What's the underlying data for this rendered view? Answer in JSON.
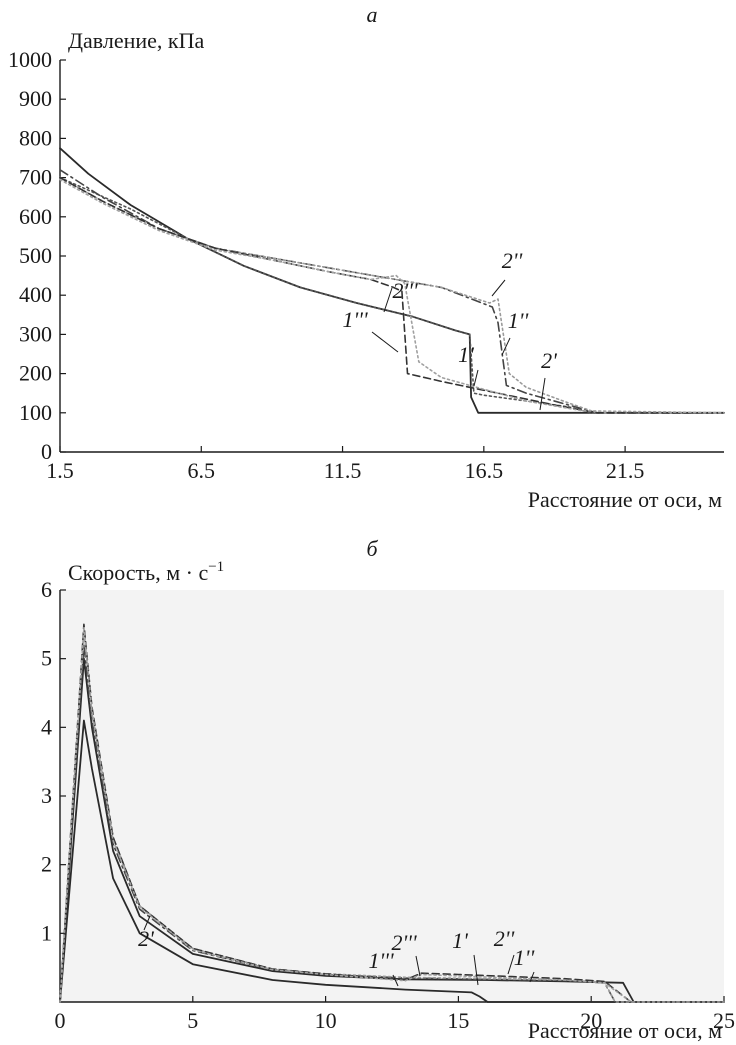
{
  "chart_data": [
    {
      "type": "line",
      "panel_label": "а",
      "ylabel": "Давление, кПа",
      "xlabel": "Расстояние от оси, м",
      "xlim": [
        1.5,
        25.0
      ],
      "ylim": [
        0,
        1000
      ],
      "xticks": [
        "1.5",
        "6.5",
        "11.5",
        "16.5",
        "21.5"
      ],
      "yticks": [
        "0",
        "100",
        "200",
        "300",
        "400",
        "500",
        "600",
        "700",
        "800",
        "900",
        "1000"
      ],
      "series": [
        {
          "name": "1'",
          "style": "solid",
          "color": "#2a2a2a",
          "x": [
            1.5,
            2.5,
            4,
            6,
            8,
            10,
            12,
            14,
            15.5,
            16.0,
            16.05,
            16.3,
            17,
            20,
            25
          ],
          "y": [
            775,
            710,
            630,
            545,
            475,
            420,
            380,
            345,
            310,
            300,
            140,
            100,
            100,
            100,
            100
          ]
        },
        {
          "name": "2'",
          "style": "dotted",
          "color": "#555555",
          "x": [
            1.5,
            4,
            6,
            8,
            10,
            12,
            14,
            15.5,
            16.0,
            16.15,
            16.5,
            18,
            19.5,
            20.3,
            25
          ],
          "y": [
            700,
            620,
            545,
            475,
            420,
            380,
            345,
            310,
            300,
            150,
            145,
            130,
            115,
            100,
            100
          ]
        },
        {
          "name": "1''",
          "style": "dashdot",
          "color": "#444444",
          "x": [
            1.5,
            3,
            5,
            7,
            9,
            11,
            13,
            15,
            16.8,
            17.0,
            17.3,
            18,
            19.5,
            20.5,
            25
          ],
          "y": [
            720,
            650,
            570,
            520,
            495,
            470,
            445,
            420,
            370,
            330,
            170,
            150,
            120,
            100,
            100
          ]
        },
        {
          "name": "2''",
          "style": "dotted",
          "color": "#9a9a9a",
          "x": [
            1.5,
            3,
            5,
            7,
            9,
            11,
            13,
            15,
            16.7,
            17.0,
            17.4,
            18,
            19.5,
            20.5,
            25
          ],
          "y": [
            700,
            640,
            570,
            520,
            495,
            470,
            445,
            420,
            380,
            390,
            200,
            165,
            125,
            100,
            100
          ]
        },
        {
          "name": "1'''",
          "style": "dashed",
          "color": "#333333",
          "x": [
            1.5,
            3,
            5,
            7,
            9,
            11,
            12.5,
            13.3,
            13.6,
            13.8,
            15,
            17,
            19,
            20.5,
            25
          ],
          "y": [
            700,
            640,
            570,
            520,
            490,
            460,
            440,
            420,
            410,
            200,
            180,
            150,
            120,
            100,
            100
          ]
        },
        {
          "name": "2'''",
          "style": "dotted",
          "color": "#a0a0a0",
          "x": [
            1.5,
            3,
            5,
            7,
            9,
            11,
            12.5,
            13.4,
            13.7,
            14.2,
            15,
            16.5,
            18,
            20,
            25
          ],
          "y": [
            695,
            635,
            565,
            515,
            490,
            460,
            440,
            450,
            430,
            230,
            190,
            160,
            130,
            105,
            100
          ]
        }
      ],
      "annotations": [
        "2'''",
        "2''",
        "1'''",
        "1''",
        "1'",
        "2'"
      ]
    },
    {
      "type": "line",
      "panel_label": "б",
      "ylabel": "Скорость, м · с",
      "ylabel_sup": "−1",
      "xlabel": "Расстояние от оси, м",
      "xlim": [
        0,
        25
      ],
      "ylim": [
        0,
        6
      ],
      "xticks": [
        "0",
        "5",
        "10",
        "15",
        "20",
        "25"
      ],
      "yticks": [
        "1",
        "2",
        "3",
        "4",
        "5",
        "6"
      ],
      "series": [
        {
          "name": "1'",
          "style": "solid",
          "color": "#2a2a2a",
          "x": [
            0,
            0.9,
            1.2,
            2,
            3,
            5,
            8,
            10,
            13,
            15.5,
            15.8,
            16.1,
            25
          ],
          "y": [
            0,
            4.1,
            3.4,
            1.8,
            1.0,
            0.55,
            0.32,
            0.25,
            0.18,
            0.14,
            0.08,
            0,
            0
          ]
        },
        {
          "name": "2'",
          "style": "solid",
          "color": "#2a2a2a",
          "x": [
            0,
            0.9,
            1.2,
            2,
            3,
            5,
            8,
            10,
            13,
            16,
            19,
            21.2,
            21.6,
            25
          ],
          "y": [
            0,
            5.0,
            4.0,
            2.2,
            1.25,
            0.7,
            0.45,
            0.38,
            0.33,
            0.32,
            0.3,
            0.28,
            0,
            0
          ]
        },
        {
          "name": "1''",
          "style": "dashdot",
          "color": "#444444",
          "x": [
            0,
            0.9,
            1.2,
            2,
            3,
            5,
            8,
            10,
            13,
            16,
            19,
            20.5,
            20.9,
            25
          ],
          "y": [
            0,
            5.2,
            4.1,
            2.3,
            1.35,
            0.75,
            0.47,
            0.4,
            0.35,
            0.33,
            0.31,
            0.28,
            0,
            0
          ]
        },
        {
          "name": "2''",
          "style": "dotted",
          "color": "#9a9a9a",
          "x": [
            0,
            0.9,
            1.2,
            2,
            3,
            5,
            8,
            10,
            13,
            16,
            19,
            20.5,
            20.9,
            25
          ],
          "y": [
            0,
            5.4,
            4.2,
            2.4,
            1.4,
            0.78,
            0.48,
            0.41,
            0.36,
            0.34,
            0.32,
            0.29,
            0,
            0
          ]
        },
        {
          "name": "1'''",
          "style": "dashed",
          "color": "#333333",
          "x": [
            0,
            0.9,
            1.2,
            2,
            3,
            5,
            8,
            10,
            13,
            13.6,
            15,
            17,
            19,
            20.5,
            21.5,
            25
          ],
          "y": [
            0,
            5.5,
            4.3,
            2.4,
            1.4,
            0.78,
            0.48,
            0.41,
            0.32,
            0.42,
            0.4,
            0.37,
            0.34,
            0.3,
            0,
            0
          ]
        },
        {
          "name": "2'''",
          "style": "dotted",
          "color": "#a0a0a0",
          "x": [
            0,
            0.9,
            1.2,
            2,
            3,
            5,
            8,
            10,
            13,
            13.6,
            15,
            17,
            19,
            20.5,
            21.5,
            25
          ],
          "y": [
            0,
            5.45,
            4.25,
            2.35,
            1.38,
            0.76,
            0.47,
            0.4,
            0.31,
            0.4,
            0.38,
            0.35,
            0.32,
            0.28,
            0,
            0
          ]
        }
      ],
      "annotations": [
        "2'''",
        "1'''",
        "1'",
        "2''",
        "1''",
        "2'"
      ]
    }
  ]
}
